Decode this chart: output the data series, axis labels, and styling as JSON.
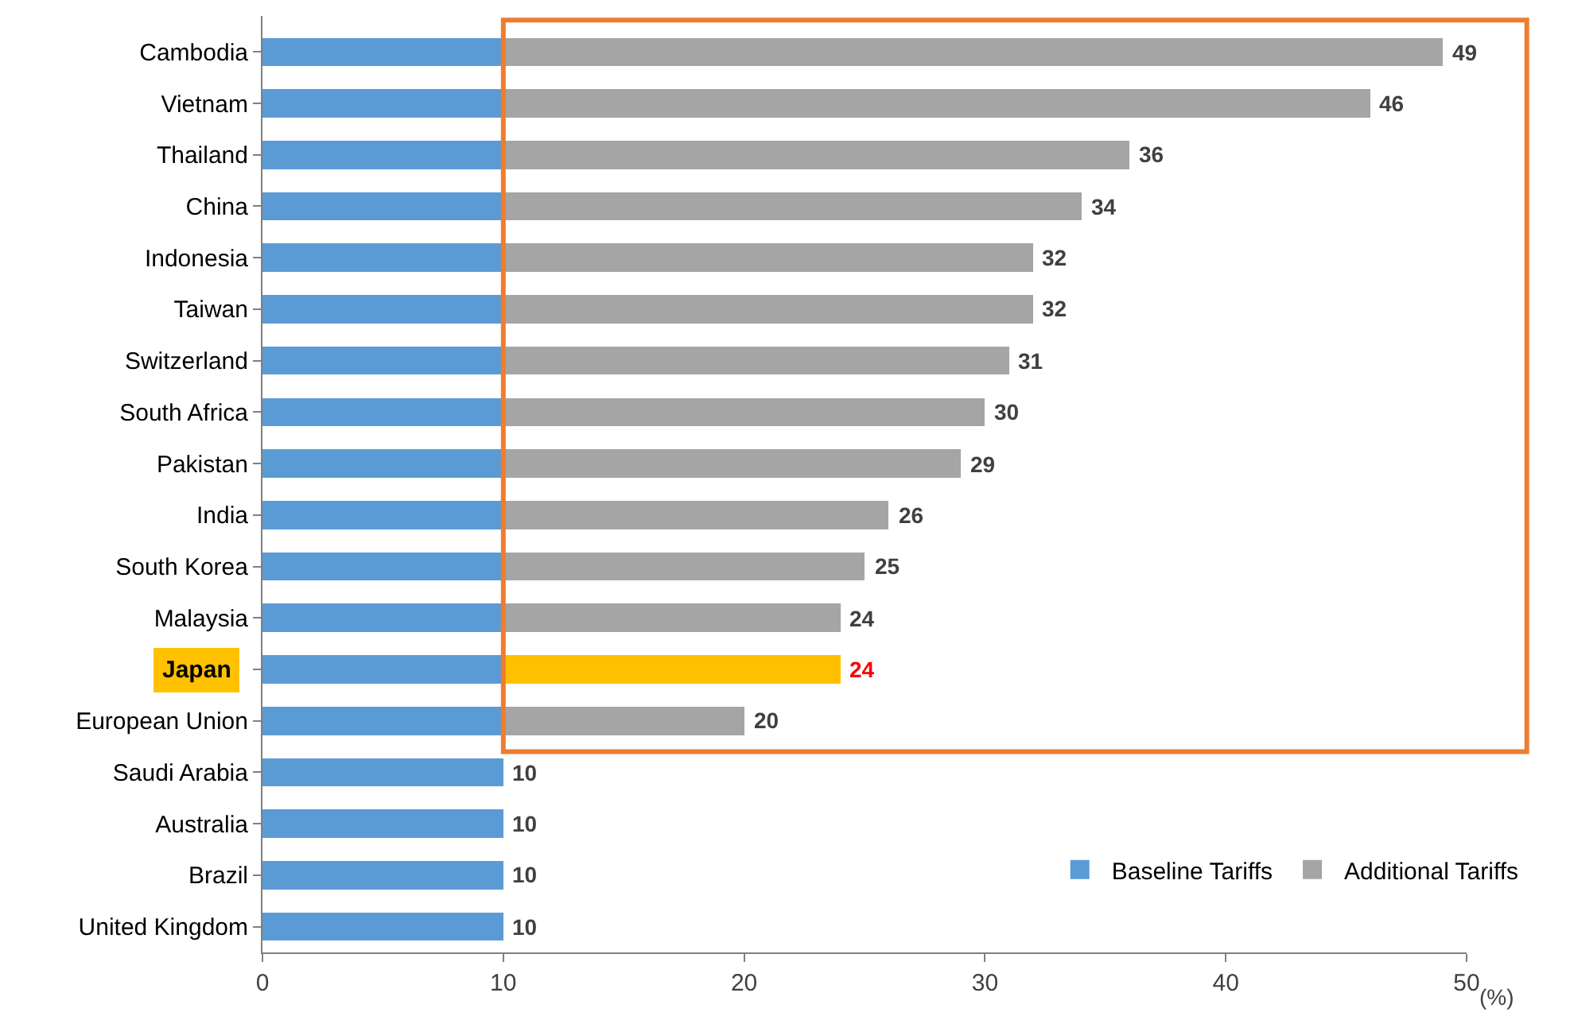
{
  "chart_data": {
    "type": "bar",
    "orientation": "horizontal",
    "stacked": true,
    "categories": [
      "Cambodia",
      "Vietnam",
      "Thailand",
      "China",
      "Indonesia",
      "Taiwan",
      "Switzerland",
      "South Africa",
      "Pakistan",
      "India",
      "South Korea",
      "Malaysia",
      "Japan",
      "European Union",
      "Saudi Arabia",
      "Australia",
      "Brazil",
      "United Kingdom"
    ],
    "series": [
      {
        "name": "Baseline Tariffs",
        "color": "#5b9bd5",
        "values": [
          10,
          10,
          10,
          10,
          10,
          10,
          10,
          10,
          10,
          10,
          10,
          10,
          10,
          10,
          10,
          10,
          10,
          10
        ]
      },
      {
        "name": "Additional Tariffs",
        "color": "#a5a5a5",
        "colors": [
          "#a5a5a5",
          "#a5a5a5",
          "#a5a5a5",
          "#a5a5a5",
          "#a5a5a5",
          "#a5a5a5",
          "#a5a5a5",
          "#a5a5a5",
          "#a5a5a5",
          "#a5a5a5",
          "#a5a5a5",
          "#a5a5a5",
          "#ffc000",
          "#a5a5a5",
          null,
          null,
          null,
          null
        ],
        "values": [
          39,
          36,
          26,
          24,
          22,
          22,
          21,
          20,
          19,
          16,
          15,
          14,
          14,
          10,
          null,
          null,
          null,
          null
        ]
      }
    ],
    "totals": [
      "49",
      "46",
      "36",
      "34",
      "32",
      "32",
      "31",
      "30",
      "29",
      "26",
      "25",
      "24",
      "24",
      "20",
      "10",
      "10",
      "10",
      "10"
    ],
    "xlabel": "(%)",
    "xlim": [
      0,
      50
    ],
    "xticks": [
      0,
      10,
      20,
      30,
      40,
      50
    ],
    "legend": "bottom right"
  }
}
